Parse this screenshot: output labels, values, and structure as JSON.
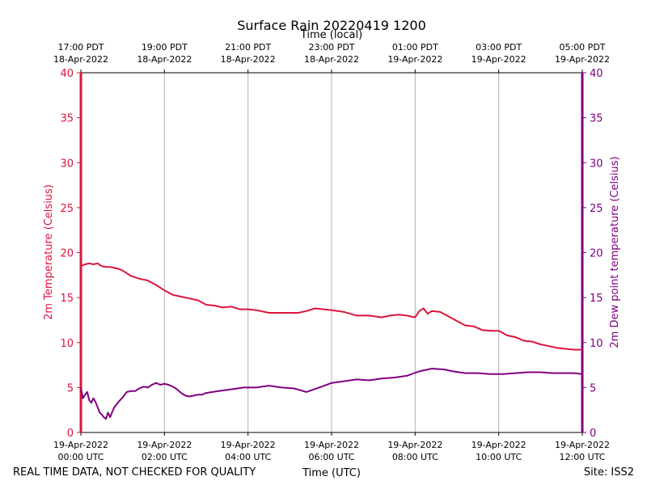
{
  "chart_data": {
    "type": "line",
    "title": "Surface Rain 20220419 1200",
    "top_axis_label": "Time (local)",
    "xlabel": "Time (UTC)",
    "ylabel_left": "2m Temperature (Celsius)",
    "ylabel_right": "2m Dew point temperature (Celsius)",
    "ylim": [
      0,
      40
    ],
    "y_ticks": [
      "0",
      "5",
      "10",
      "15",
      "20",
      "25",
      "30",
      "35",
      "40"
    ],
    "xlim_hours": [
      0,
      12
    ],
    "grid": "vertical",
    "bottom_ticks": [
      {
        "hour": 0,
        "line1": "19-Apr-2022",
        "line2": "00:00 UTC"
      },
      {
        "hour": 2,
        "line1": "19-Apr-2022",
        "line2": "02:00 UTC"
      },
      {
        "hour": 4,
        "line1": "19-Apr-2022",
        "line2": "04:00 UTC"
      },
      {
        "hour": 6,
        "line1": "19-Apr-2022",
        "line2": "06:00 UTC"
      },
      {
        "hour": 8,
        "line1": "19-Apr-2022",
        "line2": "08:00 UTC"
      },
      {
        "hour": 10,
        "line1": "19-Apr-2022",
        "line2": "10:00 UTC"
      },
      {
        "hour": 12,
        "line1": "19-Apr-2022",
        "line2": "12:00 UTC"
      }
    ],
    "top_ticks": [
      {
        "hour": 0,
        "line1": "17:00 PDT",
        "line2": "18-Apr-2022"
      },
      {
        "hour": 2,
        "line1": "19:00 PDT",
        "line2": "18-Apr-2022"
      },
      {
        "hour": 4,
        "line1": "21:00 PDT",
        "line2": "18-Apr-2022"
      },
      {
        "hour": 6,
        "line1": "23:00 PDT",
        "line2": "18-Apr-2022"
      },
      {
        "hour": 8,
        "line1": "01:00 PDT",
        "line2": "19-Apr-2022"
      },
      {
        "hour": 10,
        "line1": "03:00 PDT",
        "line2": "19-Apr-2022"
      },
      {
        "hour": 12,
        "line1": "05:00 PDT",
        "line2": "19-Apr-2022"
      }
    ],
    "series": [
      {
        "name": "2m Temperature",
        "color": "#dc143c",
        "x_hours": [
          0.0,
          0.1,
          0.2,
          0.3,
          0.4,
          0.5,
          0.6,
          0.7,
          0.8,
          0.9,
          1.0,
          1.2,
          1.4,
          1.6,
          1.8,
          2.0,
          2.2,
          2.4,
          2.6,
          2.8,
          3.0,
          3.2,
          3.4,
          3.6,
          3.8,
          4.0,
          4.2,
          4.5,
          4.8,
          5.0,
          5.2,
          5.4,
          5.6,
          5.8,
          6.0,
          6.3,
          6.6,
          6.9,
          7.2,
          7.4,
          7.6,
          7.8,
          8.0,
          8.1,
          8.2,
          8.3,
          8.4,
          8.6,
          8.8,
          9.0,
          9.2,
          9.4,
          9.6,
          9.8,
          10.0,
          10.2,
          10.4,
          10.6,
          10.8,
          11.0,
          11.2,
          11.4,
          11.6,
          11.8,
          12.0
        ],
        "values": [
          18.5,
          18.7,
          18.8,
          18.7,
          18.8,
          18.5,
          18.4,
          18.4,
          18.3,
          18.2,
          18.0,
          17.4,
          17.1,
          16.9,
          16.4,
          15.8,
          15.3,
          15.1,
          14.9,
          14.7,
          14.2,
          14.1,
          13.9,
          14.0,
          13.7,
          13.7,
          13.6,
          13.3,
          13.3,
          13.3,
          13.3,
          13.5,
          13.8,
          13.7,
          13.6,
          13.4,
          13.0,
          13.0,
          12.8,
          13.0,
          13.1,
          13.0,
          12.8,
          13.5,
          13.8,
          13.2,
          13.5,
          13.4,
          12.9,
          12.4,
          11.9,
          11.8,
          11.4,
          11.3,
          11.3,
          10.8,
          10.6,
          10.2,
          10.1,
          9.8,
          9.6,
          9.4,
          9.3,
          9.2,
          9.2
        ]
      },
      {
        "name": "2m Dew point temperature",
        "color": "#800080",
        "x_hours": [
          0.0,
          0.05,
          0.1,
          0.15,
          0.2,
          0.25,
          0.3,
          0.35,
          0.4,
          0.45,
          0.5,
          0.55,
          0.6,
          0.65,
          0.7,
          0.75,
          0.8,
          0.9,
          1.0,
          1.1,
          1.2,
          1.3,
          1.4,
          1.5,
          1.6,
          1.7,
          1.8,
          1.9,
          2.0,
          2.1,
          2.2,
          2.3,
          2.4,
          2.5,
          2.6,
          2.7,
          2.8,
          2.9,
          3.0,
          3.3,
          3.6,
          3.9,
          4.2,
          4.5,
          4.8,
          5.1,
          5.4,
          5.7,
          6.0,
          6.3,
          6.6,
          6.9,
          7.2,
          7.5,
          7.8,
          8.1,
          8.4,
          8.7,
          8.9,
          9.2,
          9.5,
          9.8,
          10.1,
          10.4,
          10.7,
          11.0,
          11.3,
          11.6,
          11.8,
          12.0
        ],
        "values": [
          4.9,
          3.8,
          4.2,
          4.5,
          3.6,
          3.3,
          3.8,
          3.4,
          2.8,
          2.2,
          2.0,
          1.7,
          1.5,
          2.2,
          1.7,
          2.3,
          2.8,
          3.4,
          3.9,
          4.5,
          4.6,
          4.6,
          4.9,
          5.1,
          5.0,
          5.3,
          5.5,
          5.3,
          5.4,
          5.3,
          5.1,
          4.8,
          4.4,
          4.1,
          4.0,
          4.1,
          4.2,
          4.2,
          4.4,
          4.6,
          4.8,
          5.0,
          5.0,
          5.2,
          5.0,
          4.9,
          4.5,
          5.0,
          5.5,
          5.7,
          5.9,
          5.8,
          6.0,
          6.1,
          6.3,
          6.8,
          7.1,
          7.0,
          6.8,
          6.6,
          6.6,
          6.5,
          6.5,
          6.6,
          6.7,
          6.7,
          6.6,
          6.6,
          6.6,
          6.5
        ]
      }
    ]
  },
  "footer": {
    "left_note": "REAL TIME DATA, NOT CHECKED FOR QUALITY",
    "site": "Site: ISS2"
  }
}
